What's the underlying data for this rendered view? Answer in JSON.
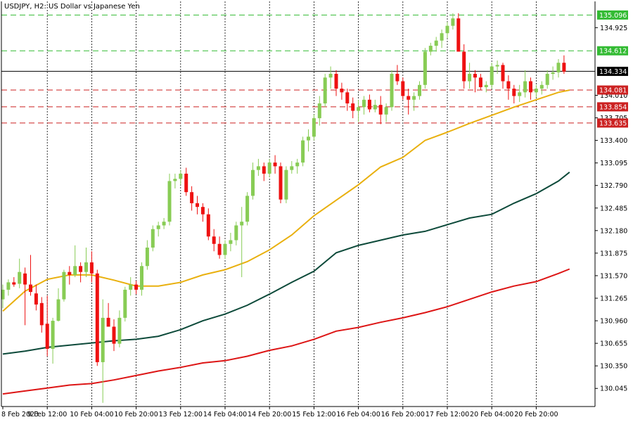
{
  "chart_data": {
    "type": "candlestick",
    "title": "USDJPY, H2:  US Dollar vs Japanese Yen",
    "y_ticks": [
      "134.925",
      "134.010",
      "133.705",
      "133.400",
      "133.095",
      "132.790",
      "132.485",
      "132.180",
      "131.875",
      "131.570",
      "131.265",
      "130.960",
      "130.655",
      "130.350",
      "130.045"
    ],
    "y_tick_values": [
      134.925,
      134.01,
      133.705,
      133.4,
      133.095,
      132.79,
      132.485,
      132.18,
      131.875,
      131.57,
      131.265,
      130.96,
      130.655,
      130.35,
      130.045
    ],
    "ylim": [
      129.8,
      135.28
    ],
    "x_labels": [
      "8 Feb 2023",
      "9 Feb 12:00",
      "10 Feb 04:00",
      "10 Feb 20:00",
      "13 Feb 12:00",
      "14 Feb 04:00",
      "14 Feb 20:00",
      "15 Feb 12:00",
      "16 Feb 04:00",
      "16 Feb 20:00",
      "17 Feb 12:00",
      "20 Feb 04:00",
      "20 Feb 20:00"
    ],
    "x_label_bars": [
      0,
      8,
      16,
      24,
      32,
      40,
      48,
      56,
      64,
      72,
      80,
      88,
      96
    ],
    "current_price": {
      "label": "134.334",
      "value": 134.334
    },
    "levels": [
      {
        "label": "135.096",
        "value": 135.096,
        "kind": "resistance"
      },
      {
        "label": "134.612",
        "value": 134.612,
        "kind": "resistance"
      },
      {
        "label": "134.081",
        "value": 134.081,
        "kind": "support"
      },
      {
        "label": "133.854",
        "value": 133.854,
        "kind": "support"
      },
      {
        "label": "133.635",
        "value": 133.635,
        "kind": "support"
      }
    ],
    "candles": [
      [
        131.25,
        131.45,
        131.13,
        131.38
      ],
      [
        131.38,
        131.52,
        131.3,
        131.48
      ],
      [
        131.48,
        131.55,
        131.42,
        131.45
      ],
      [
        131.46,
        131.8,
        131.4,
        131.62
      ],
      [
        131.6,
        131.68,
        130.9,
        131.45
      ],
      [
        131.45,
        131.85,
        131.3,
        131.35
      ],
      [
        131.33,
        131.45,
        131.1,
        131.18
      ],
      [
        131.2,
        131.28,
        130.8,
        130.9
      ],
      [
        130.92,
        131.3,
        130.48,
        130.58
      ],
      [
        130.58,
        131.0,
        130.38,
        130.96
      ],
      [
        130.96,
        131.4,
        130.95,
        131.25
      ],
      [
        131.25,
        131.65,
        131.22,
        131.62
      ],
      [
        131.62,
        131.7,
        131.45,
        131.58
      ],
      [
        131.58,
        131.98,
        131.55,
        131.7
      ],
      [
        131.7,
        131.75,
        131.48,
        131.62
      ],
      [
        131.62,
        131.95,
        131.55,
        131.75
      ],
      [
        131.75,
        131.9,
        131.48,
        131.6
      ],
      [
        131.6,
        131.65,
        130.35,
        130.4
      ],
      [
        130.4,
        131.25,
        129.85,
        131.0
      ],
      [
        131.0,
        131.2,
        130.88,
        130.88
      ],
      [
        130.88,
        130.98,
        130.55,
        130.65
      ],
      [
        130.65,
        131.1,
        130.6,
        131.0
      ],
      [
        131.0,
        131.42,
        130.95,
        131.38
      ],
      [
        131.38,
        131.55,
        131.3,
        131.45
      ],
      [
        131.45,
        131.5,
        131.32,
        131.38
      ],
      [
        131.38,
        131.75,
        131.3,
        131.7
      ],
      [
        131.7,
        132.05,
        131.65,
        131.95
      ],
      [
        131.95,
        132.25,
        131.9,
        132.2
      ],
      [
        132.2,
        132.3,
        132.1,
        132.25
      ],
      [
        132.25,
        132.35,
        132.2,
        132.3
      ],
      [
        132.3,
        132.95,
        132.25,
        132.85
      ],
      [
        132.85,
        132.95,
        132.75,
        132.88
      ],
      [
        132.88,
        133.0,
        132.8,
        132.95
      ],
      [
        132.95,
        133.03,
        132.65,
        132.7
      ],
      [
        132.7,
        132.78,
        132.45,
        132.55
      ],
      [
        132.55,
        132.65,
        132.4,
        132.5
      ],
      [
        132.5,
        132.55,
        132.3,
        132.4
      ],
      [
        132.4,
        132.48,
        132.05,
        132.1
      ],
      [
        132.1,
        132.2,
        131.9,
        132.0
      ],
      [
        132.0,
        132.1,
        131.8,
        131.85
      ],
      [
        131.85,
        132.05,
        131.8,
        132.0
      ],
      [
        132.0,
        132.15,
        131.9,
        132.05
      ],
      [
        132.05,
        132.3,
        131.98,
        132.25
      ],
      [
        132.25,
        132.5,
        131.55,
        132.3
      ],
      [
        132.3,
        132.7,
        132.25,
        132.65
      ],
      [
        132.65,
        133.1,
        132.6,
        133.0
      ],
      [
        133.0,
        133.15,
        132.92,
        133.05
      ],
      [
        133.05,
        133.1,
        132.85,
        132.95
      ],
      [
        132.95,
        133.15,
        132.9,
        133.1
      ],
      [
        133.1,
        133.2,
        132.95,
        133.05
      ],
      [
        133.05,
        133.1,
        132.55,
        132.6
      ],
      [
        132.6,
        133.05,
        132.55,
        133.0
      ],
      [
        133.0,
        133.12,
        132.95,
        133.05
      ],
      [
        133.05,
        133.15,
        132.95,
        133.1
      ],
      [
        133.1,
        133.45,
        133.05,
        133.4
      ],
      [
        133.4,
        133.55,
        133.25,
        133.45
      ],
      [
        133.45,
        133.75,
        133.4,
        133.7
      ],
      [
        133.7,
        134.0,
        133.6,
        133.9
      ],
      [
        133.9,
        134.3,
        133.85,
        134.25
      ],
      [
        134.25,
        134.4,
        134.1,
        134.3
      ],
      [
        134.3,
        134.35,
        134.0,
        134.1
      ],
      [
        134.1,
        134.18,
        133.95,
        134.05
      ],
      [
        134.05,
        134.1,
        133.8,
        133.9
      ],
      [
        133.9,
        133.98,
        133.7,
        133.8
      ],
      [
        133.8,
        133.95,
        133.65,
        133.85
      ],
      [
        133.85,
        134.0,
        133.75,
        133.95
      ],
      [
        133.95,
        134.02,
        133.78,
        133.82
      ],
      [
        133.82,
        133.95,
        133.78,
        133.88
      ],
      [
        133.88,
        134.0,
        133.62,
        133.75
      ],
      [
        133.75,
        133.9,
        133.65,
        133.85
      ],
      [
        133.85,
        134.35,
        133.8,
        134.3
      ],
      [
        134.3,
        134.42,
        134.15,
        134.2
      ],
      [
        134.2,
        134.25,
        133.95,
        134.0
      ],
      [
        134.0,
        134.1,
        133.75,
        133.95
      ],
      [
        133.95,
        134.05,
        133.8,
        134.0
      ],
      [
        134.0,
        134.2,
        133.95,
        134.15
      ],
      [
        134.15,
        134.65,
        134.1,
        134.6
      ],
      [
        134.6,
        134.72,
        134.55,
        134.68
      ],
      [
        134.68,
        134.8,
        134.6,
        134.75
      ],
      [
        134.75,
        134.9,
        134.65,
        134.85
      ],
      [
        134.85,
        135.0,
        134.78,
        134.95
      ],
      [
        134.95,
        135.12,
        134.9,
        135.05
      ],
      [
        135.05,
        135.12,
        134.62,
        134.6
      ],
      [
        134.6,
        134.7,
        134.1,
        134.2
      ],
      [
        134.2,
        134.45,
        134.1,
        134.3
      ],
      [
        134.3,
        134.35,
        134.05,
        134.25
      ],
      [
        134.25,
        134.3,
        134.08,
        134.12
      ],
      [
        134.12,
        134.2,
        134.05,
        134.15
      ],
      [
        134.15,
        134.45,
        134.1,
        134.4
      ],
      [
        134.4,
        134.48,
        134.3,
        134.42
      ],
      [
        134.42,
        134.45,
        134.1,
        134.2
      ],
      [
        134.2,
        134.28,
        133.95,
        134.1
      ],
      [
        134.1,
        134.15,
        133.9,
        134.0
      ],
      [
        134.0,
        134.15,
        133.92,
        134.05
      ],
      [
        134.05,
        134.35,
        133.98,
        134.2
      ],
      [
        134.2,
        134.25,
        133.95,
        134.05
      ],
      [
        134.05,
        134.15,
        133.98,
        134.1
      ],
      [
        134.1,
        134.2,
        134.02,
        134.15
      ],
      [
        134.15,
        134.35,
        134.1,
        134.3
      ],
      [
        134.3,
        134.4,
        134.22,
        134.32
      ],
      [
        134.32,
        134.5,
        134.25,
        134.45
      ],
      [
        134.45,
        134.55,
        134.3,
        134.33
      ]
    ],
    "ma_fast": [
      [
        0,
        131.09
      ],
      [
        4,
        131.36
      ],
      [
        8,
        131.52
      ],
      [
        12,
        131.58
      ],
      [
        16,
        131.58
      ],
      [
        20,
        131.51
      ],
      [
        24,
        131.43
      ],
      [
        28,
        131.43
      ],
      [
        32,
        131.48
      ],
      [
        36,
        131.58
      ],
      [
        40,
        131.65
      ],
      [
        44,
        131.76
      ],
      [
        48,
        131.92
      ],
      [
        52,
        132.12
      ],
      [
        56,
        132.38
      ],
      [
        60,
        132.59
      ],
      [
        64,
        132.8
      ],
      [
        68,
        133.04
      ],
      [
        72,
        133.17
      ],
      [
        76,
        133.4
      ],
      [
        80,
        133.51
      ],
      [
        84,
        133.63
      ],
      [
        88,
        133.74
      ],
      [
        92,
        133.85
      ],
      [
        96,
        133.95
      ],
      [
        100,
        134.05
      ],
      [
        102,
        134.08
      ]
    ],
    "ma_mid": [
      [
        0,
        130.51
      ],
      [
        4,
        130.55
      ],
      [
        8,
        130.6
      ],
      [
        12,
        130.63
      ],
      [
        16,
        130.66
      ],
      [
        20,
        130.69
      ],
      [
        24,
        130.71
      ],
      [
        28,
        130.75
      ],
      [
        32,
        130.84
      ],
      [
        36,
        130.96
      ],
      [
        40,
        131.05
      ],
      [
        44,
        131.17
      ],
      [
        48,
        131.32
      ],
      [
        52,
        131.48
      ],
      [
        56,
        131.63
      ],
      [
        60,
        131.88
      ],
      [
        64,
        131.98
      ],
      [
        68,
        132.05
      ],
      [
        72,
        132.12
      ],
      [
        76,
        132.17
      ],
      [
        80,
        132.26
      ],
      [
        84,
        132.35
      ],
      [
        88,
        132.4
      ],
      [
        92,
        132.55
      ],
      [
        96,
        132.68
      ],
      [
        100,
        132.85
      ],
      [
        102,
        132.97
      ]
    ],
    "ma_slow": [
      [
        0,
        129.97
      ],
      [
        4,
        130.01
      ],
      [
        8,
        130.05
      ],
      [
        12,
        130.09
      ],
      [
        16,
        130.11
      ],
      [
        20,
        130.16
      ],
      [
        24,
        130.22
      ],
      [
        28,
        130.28
      ],
      [
        32,
        130.33
      ],
      [
        36,
        130.39
      ],
      [
        40,
        130.42
      ],
      [
        44,
        130.48
      ],
      [
        48,
        130.56
      ],
      [
        52,
        130.62
      ],
      [
        56,
        130.71
      ],
      [
        60,
        130.82
      ],
      [
        64,
        130.87
      ],
      [
        68,
        130.94
      ],
      [
        72,
        131.0
      ],
      [
        76,
        131.07
      ],
      [
        80,
        131.15
      ],
      [
        84,
        131.25
      ],
      [
        88,
        131.35
      ],
      [
        92,
        131.43
      ],
      [
        96,
        131.49
      ],
      [
        100,
        131.6
      ],
      [
        102,
        131.66
      ]
    ],
    "colors": {
      "bull": "#88cc55",
      "bear": "#ee1111",
      "ma_fast": "#e9b00e",
      "ma_mid": "#0d4a3a",
      "ma_slow": "#dd1515",
      "resistance": "#33bb33",
      "support": "#cc2222",
      "price_line": "#000000",
      "grid": "#000000"
    }
  }
}
